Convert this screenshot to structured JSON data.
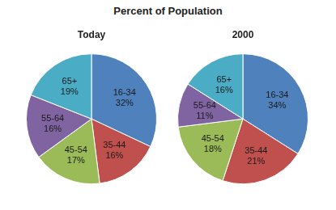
{
  "title": "Percent of Population",
  "chart_data": [
    {
      "type": "pie",
      "title": "Today",
      "categories": [
        "16-34",
        "35-44",
        "45-54",
        "55-64",
        "65+"
      ],
      "values": [
        32,
        16,
        17,
        16,
        19
      ],
      "value_labels": [
        "32%",
        "16%",
        "17%",
        "16%",
        "19%"
      ],
      "colors": [
        "#4f81bd",
        "#c0504d",
        "#9bbb59",
        "#8064a2",
        "#4bacc6"
      ],
      "data_labels": true
    },
    {
      "type": "pie",
      "title": "2000",
      "categories": [
        "16-34",
        "35-44",
        "45-54",
        "55-64",
        "65+"
      ],
      "values": [
        34,
        21,
        18,
        11,
        16
      ],
      "value_labels": [
        "34%",
        "21%",
        "18%",
        "11%",
        "16%"
      ],
      "colors": [
        "#4f81bd",
        "#c0504d",
        "#9bbb59",
        "#8064a2",
        "#4bacc6"
      ],
      "data_labels": true
    }
  ]
}
